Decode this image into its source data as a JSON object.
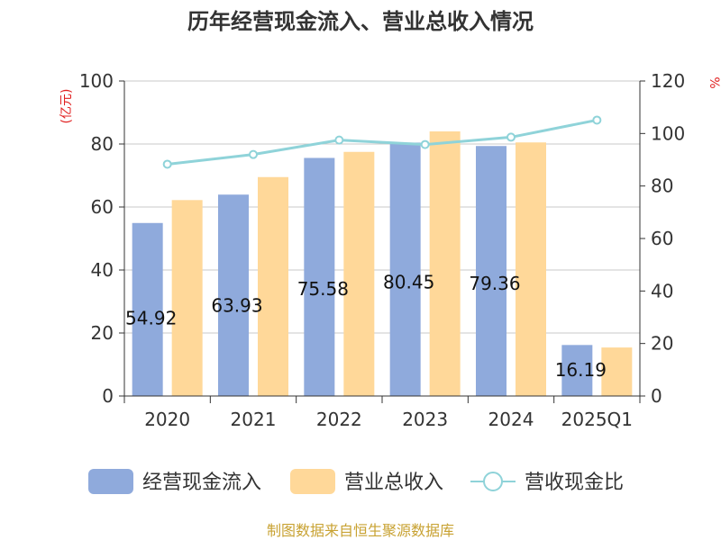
{
  "chart_data": {
    "type": "bar",
    "title": "历年经营现金流入、营业总收入情况",
    "categories": [
      "2020",
      "2021",
      "2022",
      "2023",
      "2024",
      "2025Q1"
    ],
    "series": [
      {
        "name": "经营现金流入",
        "axis": "left",
        "color": "#8faadc",
        "values": [
          54.92,
          63.93,
          75.58,
          80.45,
          79.36,
          16.19
        ],
        "labels": [
          "54.92",
          "63.93",
          "75.58",
          "80.45",
          "79.36",
          "16.19"
        ]
      },
      {
        "name": "营业总收入",
        "axis": "left",
        "color": "#ffd899",
        "values": [
          62.2,
          69.5,
          77.5,
          84.0,
          80.5,
          15.4
        ]
      },
      {
        "name": "营收现金比",
        "axis": "right",
        "type": "line",
        "color": "#8fd3d9",
        "values": [
          88.3,
          92.0,
          97.5,
          95.8,
          98.6,
          105.1
        ]
      }
    ],
    "ylabel_left": "(亿元)",
    "ylabel_right": "%",
    "ylim_left": [
      0,
      100
    ],
    "ylim_right": [
      0,
      120
    ],
    "yticks_left": [
      "0",
      "20",
      "40",
      "60",
      "80",
      "100"
    ],
    "yticks_right": [
      "0",
      "20",
      "40",
      "60",
      "80",
      "100",
      "120"
    ],
    "grid": true,
    "legend_position": "bottom"
  },
  "source_note": "制图数据来自恒生聚源数据库"
}
